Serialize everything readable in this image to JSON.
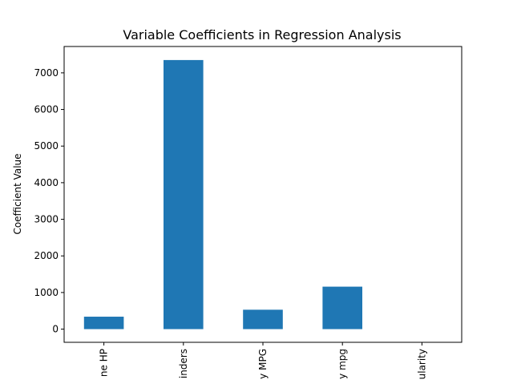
{
  "chart_data": {
    "type": "bar",
    "title": "Variable Coefficients in Regression Analysis",
    "xlabel": "",
    "ylabel": "Coefficient Value",
    "categories": [
      "ne HP",
      "inders",
      "y MPG",
      "y mpg",
      "ularity"
    ],
    "values": [
      340,
      7350,
      530,
      1160,
      0
    ],
    "ylim": [
      -360,
      7720
    ],
    "yticks": [
      0,
      1000,
      2000,
      3000,
      4000,
      5000,
      6000,
      7000
    ],
    "grid": false,
    "legend": "none",
    "bar_color": "#1f77b4"
  }
}
